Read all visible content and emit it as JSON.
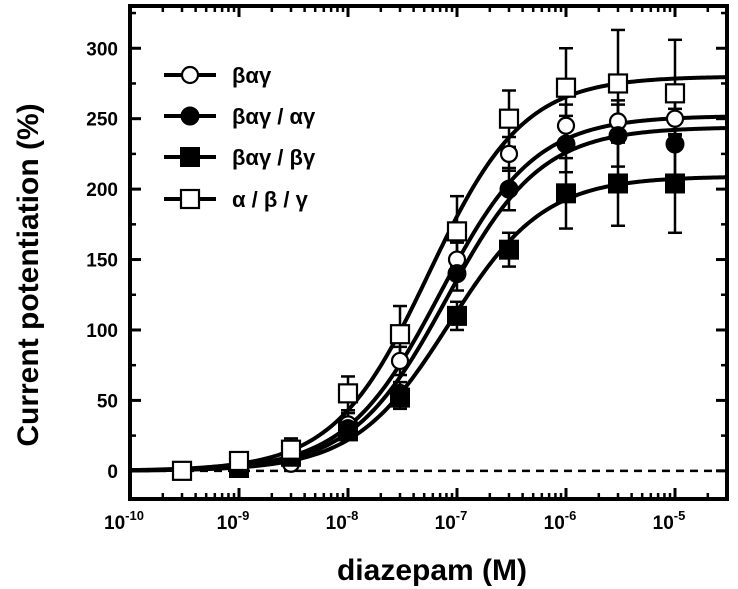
{
  "chart_data": {
    "type": "scatter",
    "title": "",
    "xlabel": "diazepam (M)",
    "ylabel": "Current potentiation (%)",
    "xscale": "log",
    "xlim": [
      1e-10,
      3e-05
    ],
    "ylim": [
      -20,
      330
    ],
    "x_ticks": [
      "10",
      "10",
      "10",
      "10",
      "10",
      "10"
    ],
    "x_tick_exponents": [
      "-10",
      "-9",
      "-8",
      "-7",
      "-6",
      "-5"
    ],
    "y_ticks": [
      "0",
      "50",
      "100",
      "150",
      "200",
      "250",
      "300"
    ],
    "grid": false,
    "legend_position": "top-left",
    "baseline": {
      "y": 0,
      "style": "dashed"
    },
    "series": [
      {
        "name": "βαγ",
        "marker": "open-circle",
        "x": [
          1e-09,
          3e-09,
          1e-08,
          3e-08,
          1e-07,
          3e-07,
          1e-06,
          3e-06,
          1e-05
        ],
        "y": [
          3,
          5,
          33,
          78,
          150,
          225,
          245,
          248,
          250
        ],
        "err": [
          5,
          5,
          8,
          10,
          12,
          12,
          15,
          15,
          12
        ],
        "fit": {
          "top": 252,
          "ec50": 7e-08,
          "hill": 1.0
        }
      },
      {
        "name": "βαγ / αγ",
        "marker": "filled-circle",
        "x": [
          1e-09,
          3e-09,
          1e-08,
          3e-08,
          1e-07,
          3e-07,
          1e-06,
          3e-06,
          1e-05
        ],
        "y": [
          3,
          10,
          30,
          55,
          140,
          200,
          232,
          238,
          232
        ],
        "err": [
          4,
          5,
          6,
          8,
          12,
          15,
          20,
          22,
          25
        ],
        "fit": {
          "top": 244,
          "ec50": 8e-08,
          "hill": 1.0
        }
      },
      {
        "name": "βαγ / βγ",
        "marker": "filled-square",
        "x": [
          1e-09,
          3e-09,
          1e-08,
          3e-08,
          1e-07,
          3e-07,
          1e-06,
          3e-06,
          1e-05
        ],
        "y": [
          2,
          10,
          28,
          52,
          110,
          157,
          197,
          204,
          204
        ],
        "err": [
          4,
          5,
          6,
          8,
          10,
          12,
          25,
          30,
          35
        ],
        "fit": {
          "top": 209,
          "ec50": 8.5e-08,
          "hill": 1.0
        }
      },
      {
        "name": "α / β / γ",
        "marker": "open-square",
        "x": [
          3e-10,
          1e-09,
          3e-09,
          1e-08,
          3e-08,
          1e-07,
          3e-07,
          1e-06,
          3e-06,
          1e-05
        ],
        "y": [
          0,
          7,
          15,
          55,
          97,
          170,
          250,
          272,
          275,
          268
        ],
        "err": [
          0,
          6,
          8,
          12,
          20,
          25,
          20,
          28,
          38,
          38
        ],
        "fit": {
          "top": 280,
          "ec50": 5.5e-08,
          "hill": 1.0
        }
      }
    ]
  }
}
